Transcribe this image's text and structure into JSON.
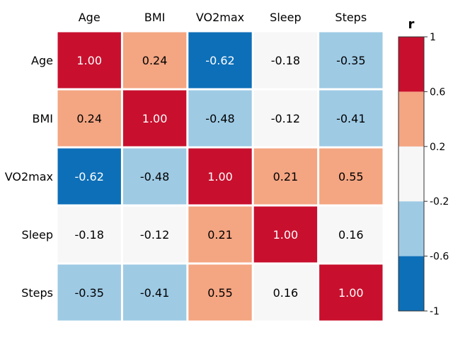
{
  "chart_data": {
    "type": "heatmap",
    "title": "",
    "xlabel": "",
    "ylabel": "",
    "x_categories": [
      "Age",
      "BMI",
      "VO2max",
      "Sleep",
      "Steps"
    ],
    "y_categories": [
      "Age",
      "BMI",
      "VO2max",
      "Sleep",
      "Steps"
    ],
    "values": [
      [
        1.0,
        0.24,
        -0.62,
        -0.18,
        -0.35
      ],
      [
        0.24,
        1.0,
        -0.48,
        -0.12,
        -0.41
      ],
      [
        -0.62,
        -0.48,
        1.0,
        0.21,
        0.55
      ],
      [
        -0.18,
        -0.12,
        0.21,
        1.0,
        0.16
      ],
      [
        -0.35,
        -0.41,
        0.55,
        0.16,
        1.0
      ]
    ],
    "value_labels": [
      [
        "1.00",
        "0.24",
        "-0.62",
        "-0.18",
        "-0.35"
      ],
      [
        "0.24",
        "1.00",
        "-0.48",
        "-0.12",
        "-0.41"
      ],
      [
        "-0.62",
        "-0.48",
        "1.00",
        "0.21",
        "0.55"
      ],
      [
        "-0.18",
        "-0.12",
        "0.21",
        "1.00",
        "0.16"
      ],
      [
        "-0.35",
        "-0.41",
        "0.55",
        "0.16",
        "1.00"
      ]
    ],
    "colorbar": {
      "title": "r",
      "range": [
        -1,
        1
      ],
      "boundaries": [
        -1,
        -0.6,
        -0.2,
        0.2,
        0.6,
        1
      ],
      "tick_labels": [
        "-1",
        "-0.6",
        "-0.2",
        "0.2",
        "0.6",
        "1"
      ],
      "colors": [
        "#0d6fb8",
        "#9ecae4",
        "#f7f7f7",
        "#f4a582",
        "#c8102e"
      ]
    },
    "dark_text_color": "#000000",
    "light_text_color": "#ffffff"
  }
}
